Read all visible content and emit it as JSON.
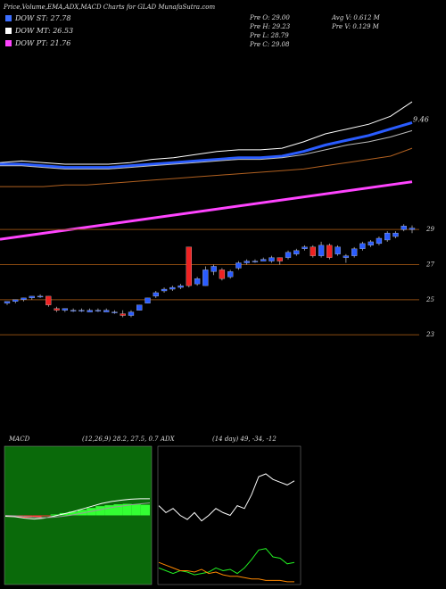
{
  "title": "Price,Volume,EMA,ADX,MACD Charts for GLAD MunafaSutra.com",
  "legend": [
    {
      "label": "DOW ST: 27.78",
      "color": "#3d6fff"
    },
    {
      "label": "DOW MT: 26.53",
      "color": "#ffffff"
    },
    {
      "label": "DOW PT: 21.76",
      "color": "#ff44ff"
    }
  ],
  "stats": [
    "Pre O: 29.00",
    "Pre H: 29.23",
    "Pre L: 28.79",
    "Pre C: 29.08",
    "Avg V: 0.612 M",
    "Pre V: 0.129 M"
  ],
  "chart_data": [
    {
      "type": "line",
      "ylim": [
        -20,
        100
      ],
      "annotation": "9.46",
      "series": [
        {
          "color": "#ffffff",
          "width": 1,
          "values": [
            29,
            30,
            29,
            28,
            28,
            28,
            29,
            31,
            32,
            34,
            36,
            37,
            37,
            38,
            42,
            47,
            50,
            53,
            58,
            67
          ]
        },
        {
          "color": "#2a5cff",
          "width": 3,
          "values": [
            28,
            28,
            27,
            26,
            26,
            26,
            27,
            28,
            29,
            30,
            31,
            32,
            32,
            33,
            36,
            40,
            43,
            46,
            50,
            54
          ]
        },
        {
          "color": "#bbbbbb",
          "width": 1,
          "values": [
            27,
            27,
            26,
            25,
            25,
            25,
            26,
            27,
            28,
            29,
            30,
            31,
            31,
            32,
            34,
            37,
            40,
            42,
            45,
            49
          ]
        },
        {
          "color": "#b06020",
          "width": 1,
          "values": [
            14,
            14,
            14,
            15,
            15,
            16,
            17,
            18,
            19,
            20,
            21,
            22,
            23,
            24,
            25,
            27,
            29,
            31,
            33,
            38
          ]
        },
        {
          "color": "#ff44ff",
          "width": 3,
          "values": [
            -19,
            17
          ]
        }
      ]
    },
    {
      "type": "candlestick",
      "ylim": [
        22.5,
        30
      ],
      "yticks": [
        29,
        27,
        25,
        23
      ],
      "up_color": "#2a5cff",
      "down_color": "#ee2222",
      "grid_color": "#8a4a10",
      "open": [
        24.8,
        24.9,
        25.0,
        25.1,
        25.2,
        25.2,
        24.5,
        24.4,
        24.4,
        24.4,
        24.3,
        24.4,
        24.3,
        24.3,
        24.2,
        24.1,
        24.4,
        24.8,
        25.2,
        25.5,
        25.6,
        25.7,
        28.0,
        25.9,
        25.8,
        26.6,
        26.7,
        26.3,
        26.8,
        27.1,
        27.2,
        27.2,
        27.2,
        27.4,
        27.4,
        27.6,
        27.9,
        28.0,
        27.5,
        28.1,
        27.6,
        27.4,
        27.5,
        27.9,
        28.1,
        28.2,
        28.4,
        28.6,
        29.0,
        29.0
      ],
      "high": [
        24.9,
        25.0,
        25.1,
        25.2,
        25.3,
        25.2,
        24.6,
        24.5,
        24.5,
        24.5,
        24.5,
        24.5,
        24.5,
        24.4,
        24.4,
        24.4,
        24.7,
        25.1,
        25.5,
        25.7,
        25.8,
        25.9,
        28.0,
        26.3,
        26.9,
        27.0,
        26.8,
        26.7,
        27.2,
        27.3,
        27.3,
        27.4,
        27.5,
        27.4,
        27.8,
        27.9,
        28.1,
        28.1,
        28.3,
        28.2,
        28.1,
        27.6,
        28.0,
        28.3,
        28.4,
        28.6,
        28.9,
        28.9,
        29.3,
        29.23
      ],
      "low": [
        24.7,
        24.8,
        24.9,
        25.0,
        25.1,
        24.6,
        24.3,
        24.3,
        24.3,
        24.3,
        24.3,
        24.3,
        24.3,
        24.2,
        24.0,
        24.0,
        24.4,
        24.8,
        25.1,
        25.4,
        25.5,
        25.6,
        25.7,
        25.8,
        25.8,
        26.4,
        26.1,
        26.2,
        26.7,
        27.0,
        27.1,
        27.2,
        27.1,
        27.0,
        27.3,
        27.5,
        27.8,
        27.4,
        27.4,
        27.3,
        27.5,
        27.1,
        27.4,
        27.8,
        28.0,
        28.1,
        28.3,
        28.5,
        28.9,
        28.79
      ],
      "close": [
        24.9,
        25.0,
        25.1,
        25.2,
        25.2,
        24.7,
        24.4,
        24.5,
        24.4,
        24.4,
        24.4,
        24.4,
        24.4,
        24.3,
        24.1,
        24.3,
        24.7,
        25.1,
        25.4,
        25.6,
        25.7,
        25.8,
        25.8,
        26.2,
        26.7,
        26.9,
        26.2,
        26.6,
        27.1,
        27.2,
        27.2,
        27.3,
        27.4,
        27.2,
        27.7,
        27.8,
        28.0,
        27.5,
        28.1,
        27.4,
        28.0,
        27.5,
        27.9,
        28.2,
        28.3,
        28.5,
        28.8,
        28.8,
        29.2,
        29.08
      ]
    },
    {
      "type": "macd",
      "title": "MACD",
      "subtitle": "(12,26,9) 28.2, 27.5, 0.7",
      "ylim": [
        -1.5,
        1.5
      ],
      "histogram": [
        -0.03,
        -0.04,
        -0.05,
        -0.04,
        -0.02,
        0.02,
        0.05,
        0.08,
        0.12,
        0.16,
        0.2,
        0.22,
        0.24,
        0.25,
        0.24,
        0.23
      ],
      "series": [
        {
          "color": "#ffffff",
          "values": [
            -0.02,
            -0.03,
            -0.06,
            -0.08,
            -0.06,
            -0.02,
            0.03,
            0.08,
            0.14,
            0.2,
            0.26,
            0.3,
            0.33,
            0.35,
            0.36,
            0.36
          ]
        },
        {
          "color": "#999999",
          "values": [
            0,
            -0.01,
            -0.02,
            -0.04,
            -0.05,
            -0.04,
            -0.02,
            0.01,
            0.05,
            0.09,
            0.13,
            0.17,
            0.2,
            0.23,
            0.25,
            0.27
          ]
        }
      ]
    },
    {
      "type": "adx",
      "title": "ADX",
      "subtitle": "(14 day) 49, -34, -12",
      "ylim": [
        0,
        100
      ],
      "series": [
        {
          "color": "#ffffff",
          "values": [
            57,
            52,
            55,
            50,
            47,
            52,
            46,
            50,
            55,
            52,
            50,
            57,
            55,
            65,
            78,
            80,
            76,
            74,
            72,
            75
          ]
        },
        {
          "color": "#22ee22",
          "values": [
            12,
            10,
            8,
            10,
            9,
            7,
            8,
            9,
            12,
            10,
            11,
            8,
            12,
            18,
            25,
            26,
            20,
            19,
            15,
            16
          ]
        },
        {
          "color": "#ff8800",
          "values": [
            16,
            14,
            12,
            10,
            10,
            9,
            11,
            8,
            9,
            7,
            6,
            6,
            5,
            4,
            4,
            3,
            3,
            3,
            2,
            2
          ]
        }
      ]
    }
  ]
}
